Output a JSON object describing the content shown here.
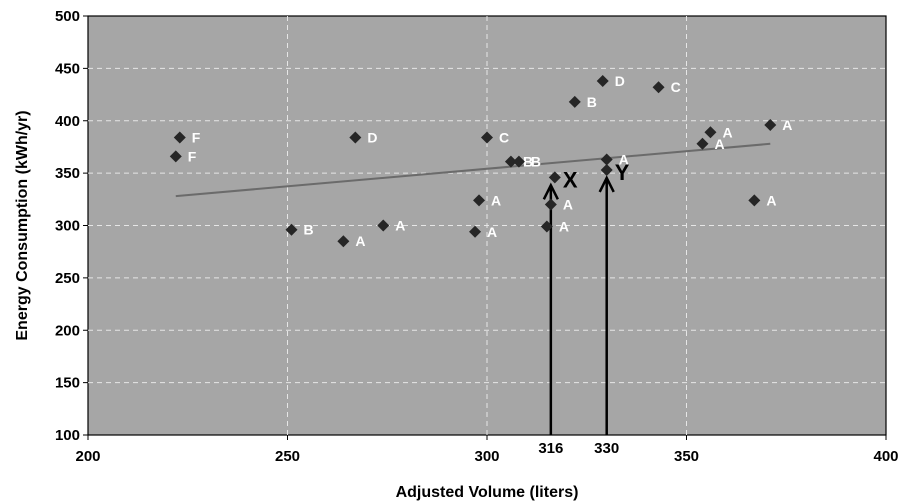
{
  "chart_data": {
    "type": "scatter",
    "xlabel": "Adjusted Volume (liters)",
    "ylabel": "Energy Consumption (kWh/yr)",
    "xlim": [
      200,
      400
    ],
    "ylim": [
      100,
      500
    ],
    "xticks": [
      200,
      250,
      300,
      350,
      400
    ],
    "yticks": [
      100,
      150,
      200,
      250,
      300,
      350,
      400,
      450,
      500
    ],
    "extra_xticks": [
      316,
      330
    ],
    "grid": true,
    "plot_background": "#a6a6a6",
    "point_color": "#262626",
    "trend_color": "#6b6b6b",
    "points": [
      {
        "x": 223,
        "y": 384,
        "label": "F"
      },
      {
        "x": 222,
        "y": 366,
        "label": "F"
      },
      {
        "x": 251,
        "y": 296,
        "label": "B"
      },
      {
        "x": 264,
        "y": 285,
        "label": "A"
      },
      {
        "x": 267,
        "y": 384,
        "label": "D"
      },
      {
        "x": 274,
        "y": 300,
        "label": "A"
      },
      {
        "x": 297,
        "y": 294,
        "label": "A"
      },
      {
        "x": 298,
        "y": 324,
        "label": "A"
      },
      {
        "x": 300,
        "y": 384,
        "label": "C"
      },
      {
        "x": 306,
        "y": 361,
        "label": "B"
      },
      {
        "x": 308,
        "y": 361,
        "label": "B"
      },
      {
        "x": 315,
        "y": 299,
        "label": "A"
      },
      {
        "x": 316,
        "y": 320,
        "label": "A"
      },
      {
        "x": 317,
        "y": 346,
        "label": "X"
      },
      {
        "x": 322,
        "y": 418,
        "label": "B"
      },
      {
        "x": 329,
        "y": 438,
        "label": "D"
      },
      {
        "x": 330,
        "y": 363,
        "label": "A"
      },
      {
        "x": 330,
        "y": 353,
        "label": "Y"
      },
      {
        "x": 343,
        "y": 432,
        "label": "C"
      },
      {
        "x": 354,
        "y": 378,
        "label": "A"
      },
      {
        "x": 356,
        "y": 389,
        "label": "A"
      },
      {
        "x": 367,
        "y": 324,
        "label": "A"
      },
      {
        "x": 371,
        "y": 396,
        "label": "A"
      }
    ],
    "trend_line": {
      "x": [
        222,
        371
      ],
      "y": [
        328,
        378
      ]
    },
    "annotations": [
      {
        "text": "X",
        "x": 316
      },
      {
        "text": "Y",
        "x": 330
      }
    ]
  }
}
